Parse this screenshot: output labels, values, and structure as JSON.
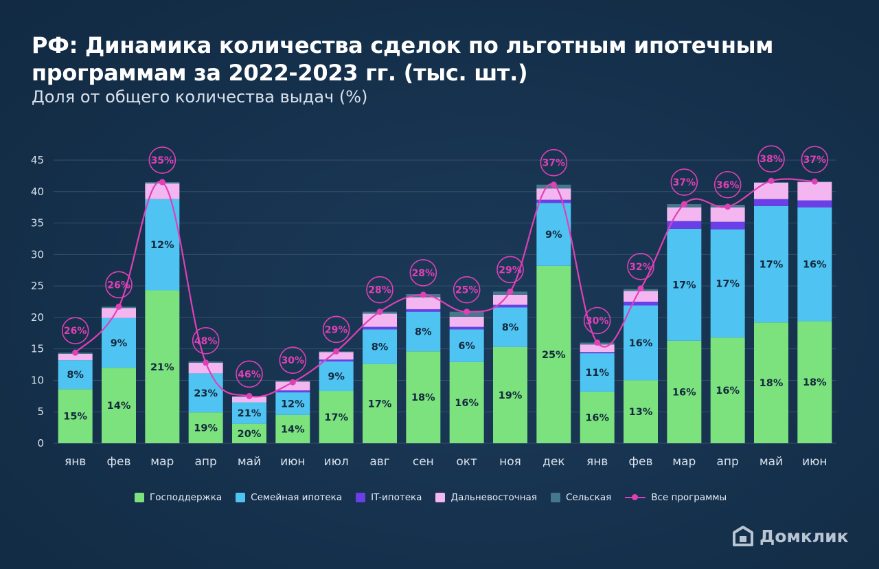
{
  "title": "РФ: Динамика количества сделок по льготным ипотечным программам за 2022-2023 гг. (тыс. шт.)",
  "subtitle": "Доля от общего количества выдач (%)",
  "brand": {
    "name": "Домклик",
    "icon": "house-logo-icon"
  },
  "colors": {
    "gospodderzhka": "#7be27e",
    "semeynaya": "#4fc4f2",
    "it": "#6a3fe8",
    "dalnevostochnaya": "#f3b6f0",
    "selskaya": "#46788c",
    "vse": "#e040b6"
  },
  "chart_data": {
    "type": "bar",
    "stacked": true,
    "categories": [
      "янв",
      "фев",
      "мар",
      "апр",
      "май",
      "июн",
      "июл",
      "авг",
      "сен",
      "окт",
      "ноя",
      "дек",
      "янв",
      "фев",
      "мар",
      "апр",
      "май",
      "июн"
    ],
    "ylim": [
      0,
      45
    ],
    "yticks": [
      0,
      5,
      10,
      15,
      20,
      25,
      30,
      35,
      40,
      45
    ],
    "grid": true,
    "legend_position": "bottom",
    "series": [
      {
        "name": "Господдержка",
        "key": "gospodderzhka",
        "values": [
          8.6,
          12.0,
          24.3,
          4.9,
          3.1,
          4.5,
          8.3,
          12.6,
          14.6,
          12.9,
          15.3,
          28.2,
          8.2,
          10.0,
          16.3,
          16.8,
          19.2,
          19.4
        ],
        "labels": [
          "15%",
          "14%",
          "21%",
          "19%",
          "20%",
          "14%",
          "17%",
          "17%",
          "18%",
          "16%",
          "19%",
          "25%",
          "16%",
          "13%",
          "16%",
          "16%",
          "18%",
          "18%"
        ]
      },
      {
        "name": "Семейная ипотека",
        "key": "semeynaya",
        "values": [
          4.6,
          7.9,
          14.5,
          6.2,
          3.4,
          3.6,
          4.7,
          5.5,
          6.3,
          5.2,
          6.3,
          10.0,
          6.1,
          11.9,
          17.8,
          17.2,
          18.5,
          18.1
        ],
        "labels": [
          "8%",
          "9%",
          "12%",
          "23%",
          "21%",
          "12%",
          "9%",
          "8%",
          "8%",
          "6%",
          "8%",
          "9%",
          "11%",
          "16%",
          "17%",
          "17%",
          "17%",
          "16%"
        ]
      },
      {
        "name": "IT-ипотека",
        "key": "it",
        "values": [
          0,
          0,
          0,
          0,
          0,
          0.3,
          0.3,
          0.4,
          0.4,
          0.4,
          0.4,
          0.5,
          0.2,
          0.6,
          1.2,
          1.2,
          1.1,
          1.1
        ],
        "labels": []
      },
      {
        "name": "Дальневосточная",
        "key": "dalnevostochnaya",
        "values": [
          1.0,
          1.6,
          2.5,
          1.7,
          0.9,
          1.4,
          1.2,
          2.1,
          1.9,
          1.6,
          1.6,
          1.8,
          1.2,
          1.7,
          2.2,
          2.3,
          2.6,
          2.9
        ],
        "labels": []
      },
      {
        "name": "Сельская",
        "key": "selskaya",
        "values": [
          0.2,
          0.2,
          0.2,
          0.2,
          0.1,
          0.1,
          0.1,
          0.3,
          0.5,
          0.8,
          0.5,
          0.6,
          0.3,
          0.3,
          0.5,
          0.4,
          0.1,
          0.1
        ],
        "labels": []
      },
      {
        "name": "Все программы",
        "key": "vse",
        "type": "line",
        "values": [
          14.4,
          21.7,
          41.5,
          12.8,
          7.5,
          9.7,
          14.6,
          20.9,
          23.6,
          20.9,
          24.1,
          41.1,
          16.0,
          24.6,
          38.0,
          37.6,
          41.7,
          41.6
        ],
        "labels": [
          "26%",
          "26%",
          "35%",
          "48%",
          "46%",
          "30%",
          "29%",
          "28%",
          "28%",
          "25%",
          "29%",
          "37%",
          "30%",
          "32%",
          "37%",
          "36%",
          "38%",
          "37%"
        ]
      }
    ]
  }
}
